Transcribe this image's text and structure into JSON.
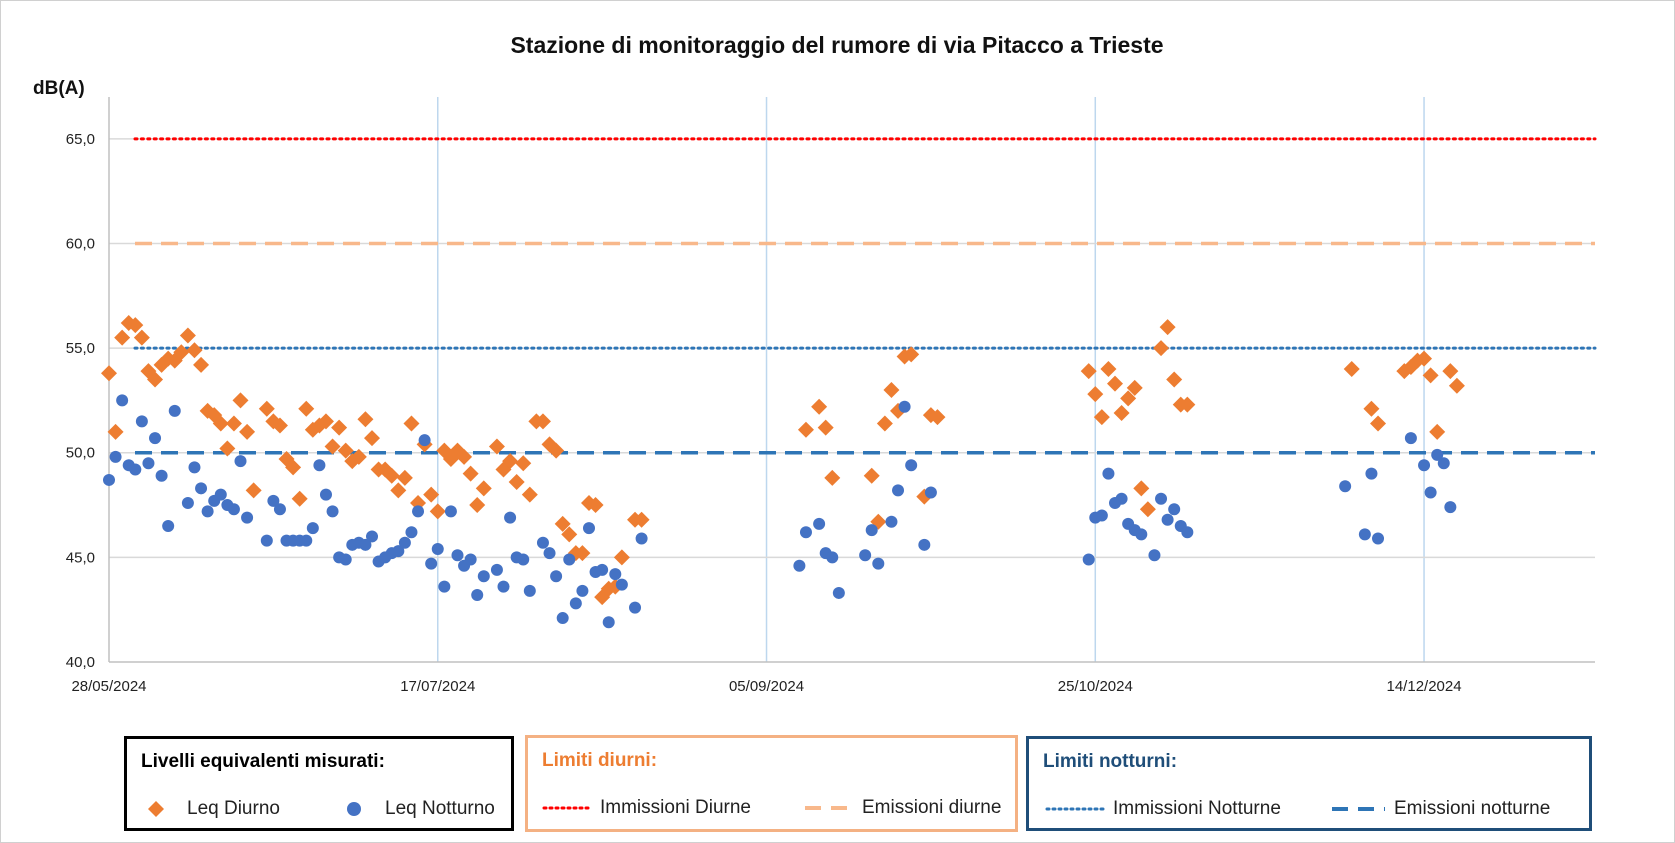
{
  "chart_data": {
    "type": "scatter",
    "title": "Stazione di monitoraggio del rumore di via Pitacco a Trieste",
    "ylabel": "dB(A)",
    "xlabel": "",
    "x_axis_type": "date",
    "xlim": [
      "2024-05-28",
      "2025-01-09"
    ],
    "ylim": [
      40,
      67
    ],
    "y_ticks": [
      40,
      45,
      50,
      55,
      60,
      65
    ],
    "y_tick_labels": [
      "40,0",
      "45,0",
      "50,0",
      "55,0",
      "60,0",
      "65,0"
    ],
    "x_ticks": [
      "2024-05-28",
      "2024-07-17",
      "2024-09-05",
      "2024-10-25",
      "2024-12-14"
    ],
    "x_tick_labels": [
      "28/05/2024",
      "17/07/2024",
      "05/09/2024",
      "25/10/2024",
      "14/12/2024"
    ],
    "grid": "horizontal and vertical",
    "series": [
      {
        "name": "Leq Diurno",
        "marker": "diamond",
        "color": "#ED7D31",
        "points": [
          [
            "2024-05-28",
            53.8
          ],
          [
            "2024-05-29",
            51.0
          ],
          [
            "2024-05-30",
            55.5
          ],
          [
            "2024-05-31",
            56.2
          ],
          [
            "2024-06-01",
            56.1
          ],
          [
            "2024-06-02",
            55.5
          ],
          [
            "2024-06-03",
            53.9
          ],
          [
            "2024-06-04",
            53.5
          ],
          [
            "2024-06-05",
            54.2
          ],
          [
            "2024-06-06",
            54.5
          ],
          [
            "2024-06-07",
            54.4
          ],
          [
            "2024-06-08",
            54.8
          ],
          [
            "2024-06-09",
            55.6
          ],
          [
            "2024-06-10",
            54.9
          ],
          [
            "2024-06-11",
            54.2
          ],
          [
            "2024-06-12",
            52.0
          ],
          [
            "2024-06-13",
            51.8
          ],
          [
            "2024-06-14",
            51.4
          ],
          [
            "2024-06-15",
            50.2
          ],
          [
            "2024-06-16",
            51.4
          ],
          [
            "2024-06-17",
            52.5
          ],
          [
            "2024-06-18",
            51.0
          ],
          [
            "2024-06-19",
            48.2
          ],
          [
            "2024-06-21",
            52.1
          ],
          [
            "2024-06-22",
            51.5
          ],
          [
            "2024-06-23",
            51.3
          ],
          [
            "2024-06-24",
            49.7
          ],
          [
            "2024-06-25",
            49.3
          ],
          [
            "2024-06-26",
            47.8
          ],
          [
            "2024-06-27",
            52.1
          ],
          [
            "2024-06-28",
            51.1
          ],
          [
            "2024-06-29",
            51.3
          ],
          [
            "2024-06-30",
            51.5
          ],
          [
            "2024-07-01",
            50.3
          ],
          [
            "2024-07-02",
            51.2
          ],
          [
            "2024-07-03",
            50.1
          ],
          [
            "2024-07-04",
            49.6
          ],
          [
            "2024-07-05",
            49.8
          ],
          [
            "2024-07-06",
            51.6
          ],
          [
            "2024-07-07",
            50.7
          ],
          [
            "2024-07-08",
            49.2
          ],
          [
            "2024-07-09",
            49.2
          ],
          [
            "2024-07-10",
            48.9
          ],
          [
            "2024-07-11",
            48.2
          ],
          [
            "2024-07-12",
            48.8
          ],
          [
            "2024-07-13",
            51.4
          ],
          [
            "2024-07-14",
            47.6
          ],
          [
            "2024-07-15",
            50.4
          ],
          [
            "2024-07-16",
            48.0
          ],
          [
            "2024-07-17",
            47.2
          ],
          [
            "2024-07-18",
            50.1
          ],
          [
            "2024-07-19",
            49.7
          ],
          [
            "2024-07-20",
            50.1
          ],
          [
            "2024-07-21",
            49.8
          ],
          [
            "2024-07-22",
            49.0
          ],
          [
            "2024-07-23",
            47.5
          ],
          [
            "2024-07-24",
            48.3
          ],
          [
            "2024-07-26",
            50.3
          ],
          [
            "2024-07-27",
            49.2
          ],
          [
            "2024-07-28",
            49.6
          ],
          [
            "2024-07-29",
            48.6
          ],
          [
            "2024-07-30",
            49.5
          ],
          [
            "2024-07-31",
            48.0
          ],
          [
            "2024-08-01",
            51.5
          ],
          [
            "2024-08-02",
            51.5
          ],
          [
            "2024-08-03",
            50.4
          ],
          [
            "2024-08-04",
            50.1
          ],
          [
            "2024-08-05",
            46.6
          ],
          [
            "2024-08-06",
            46.1
          ],
          [
            "2024-08-07",
            45.2
          ],
          [
            "2024-08-08",
            45.2
          ],
          [
            "2024-08-09",
            47.6
          ],
          [
            "2024-08-10",
            47.5
          ],
          [
            "2024-08-11",
            43.1
          ],
          [
            "2024-08-12",
            43.5
          ],
          [
            "2024-08-13",
            43.6
          ],
          [
            "2024-08-14",
            45.0
          ],
          [
            "2024-08-16",
            46.8
          ],
          [
            "2024-08-17",
            46.8
          ],
          [
            "2024-09-11",
            51.1
          ],
          [
            "2024-09-13",
            52.2
          ],
          [
            "2024-09-14",
            51.2
          ],
          [
            "2024-09-15",
            48.8
          ],
          [
            "2024-09-21",
            48.9
          ],
          [
            "2024-09-22",
            46.7
          ],
          [
            "2024-09-23",
            51.4
          ],
          [
            "2024-09-24",
            53.0
          ],
          [
            "2024-09-25",
            52.0
          ],
          [
            "2024-09-26",
            54.6
          ],
          [
            "2024-09-27",
            54.7
          ],
          [
            "2024-09-29",
            47.9
          ],
          [
            "2024-09-30",
            51.8
          ],
          [
            "2024-10-01",
            51.7
          ],
          [
            "2024-10-24",
            53.9
          ],
          [
            "2024-10-25",
            52.8
          ],
          [
            "2024-10-26",
            51.7
          ],
          [
            "2024-10-27",
            54.0
          ],
          [
            "2024-10-28",
            53.3
          ],
          [
            "2024-10-29",
            51.9
          ],
          [
            "2024-10-30",
            52.6
          ],
          [
            "2024-10-31",
            53.1
          ],
          [
            "2024-11-01",
            48.3
          ],
          [
            "2024-11-02",
            47.3
          ],
          [
            "2024-11-04",
            55.0
          ],
          [
            "2024-11-05",
            56.0
          ],
          [
            "2024-11-06",
            53.5
          ],
          [
            "2024-11-07",
            52.3
          ],
          [
            "2024-11-08",
            52.3
          ],
          [
            "2024-12-03",
            54.0
          ],
          [
            "2024-12-06",
            52.1
          ],
          [
            "2024-12-07",
            51.4
          ],
          [
            "2024-12-11",
            53.9
          ],
          [
            "2024-12-12",
            54.1
          ],
          [
            "2024-12-13",
            54.4
          ],
          [
            "2024-12-14",
            54.5
          ],
          [
            "2024-12-15",
            53.7
          ],
          [
            "2024-12-16",
            51.0
          ],
          [
            "2024-12-18",
            53.9
          ],
          [
            "2024-12-19",
            53.2
          ]
        ]
      },
      {
        "name": "Leq Notturno",
        "marker": "circle",
        "color": "#4472C4",
        "points": [
          [
            "2024-05-28",
            48.7
          ],
          [
            "2024-05-29",
            49.8
          ],
          [
            "2024-05-30",
            52.5
          ],
          [
            "2024-05-31",
            49.4
          ],
          [
            "2024-06-01",
            49.2
          ],
          [
            "2024-06-02",
            51.5
          ],
          [
            "2024-06-03",
            49.5
          ],
          [
            "2024-06-04",
            50.7
          ],
          [
            "2024-06-05",
            48.9
          ],
          [
            "2024-06-06",
            46.5
          ],
          [
            "2024-06-07",
            52.0
          ],
          [
            "2024-06-09",
            47.6
          ],
          [
            "2024-06-10",
            49.3
          ],
          [
            "2024-06-11",
            48.3
          ],
          [
            "2024-06-12",
            47.2
          ],
          [
            "2024-06-13",
            47.7
          ],
          [
            "2024-06-14",
            48.0
          ],
          [
            "2024-06-15",
            47.5
          ],
          [
            "2024-06-16",
            47.3
          ],
          [
            "2024-06-17",
            49.6
          ],
          [
            "2024-06-18",
            46.9
          ],
          [
            "2024-06-21",
            45.8
          ],
          [
            "2024-06-22",
            47.7
          ],
          [
            "2024-06-23",
            47.3
          ],
          [
            "2024-06-24",
            45.8
          ],
          [
            "2024-06-25",
            45.8
          ],
          [
            "2024-06-26",
            45.8
          ],
          [
            "2024-06-27",
            45.8
          ],
          [
            "2024-06-28",
            46.4
          ],
          [
            "2024-06-29",
            49.4
          ],
          [
            "2024-06-30",
            48.0
          ],
          [
            "2024-07-01",
            47.2
          ],
          [
            "2024-07-02",
            45.0
          ],
          [
            "2024-07-03",
            44.9
          ],
          [
            "2024-07-04",
            45.6
          ],
          [
            "2024-07-05",
            45.7
          ],
          [
            "2024-07-06",
            45.6
          ],
          [
            "2024-07-07",
            46.0
          ],
          [
            "2024-07-08",
            44.8
          ],
          [
            "2024-07-09",
            45.0
          ],
          [
            "2024-07-10",
            45.2
          ],
          [
            "2024-07-11",
            45.3
          ],
          [
            "2024-07-12",
            45.7
          ],
          [
            "2024-07-13",
            46.2
          ],
          [
            "2024-07-14",
            47.2
          ],
          [
            "2024-07-15",
            50.6
          ],
          [
            "2024-07-16",
            44.7
          ],
          [
            "2024-07-17",
            45.4
          ],
          [
            "2024-07-18",
            43.6
          ],
          [
            "2024-07-19",
            47.2
          ],
          [
            "2024-07-20",
            45.1
          ],
          [
            "2024-07-21",
            44.6
          ],
          [
            "2024-07-22",
            44.9
          ],
          [
            "2024-07-23",
            43.2
          ],
          [
            "2024-07-24",
            44.1
          ],
          [
            "2024-07-26",
            44.4
          ],
          [
            "2024-07-27",
            43.6
          ],
          [
            "2024-07-28",
            46.9
          ],
          [
            "2024-07-29",
            45.0
          ],
          [
            "2024-07-30",
            44.9
          ],
          [
            "2024-07-31",
            43.4
          ],
          [
            "2024-08-02",
            45.7
          ],
          [
            "2024-08-03",
            45.2
          ],
          [
            "2024-08-04",
            44.1
          ],
          [
            "2024-08-05",
            42.1
          ],
          [
            "2024-08-06",
            44.9
          ],
          [
            "2024-08-07",
            42.8
          ],
          [
            "2024-08-08",
            43.4
          ],
          [
            "2024-08-09",
            46.4
          ],
          [
            "2024-08-10",
            44.3
          ],
          [
            "2024-08-11",
            44.4
          ],
          [
            "2024-08-12",
            41.9
          ],
          [
            "2024-08-13",
            44.2
          ],
          [
            "2024-08-14",
            43.7
          ],
          [
            "2024-08-16",
            42.6
          ],
          [
            "2024-08-17",
            45.9
          ],
          [
            "2024-09-10",
            44.6
          ],
          [
            "2024-09-11",
            46.2
          ],
          [
            "2024-09-13",
            46.6
          ],
          [
            "2024-09-14",
            45.2
          ],
          [
            "2024-09-15",
            45.0
          ],
          [
            "2024-09-16",
            43.3
          ],
          [
            "2024-09-20",
            45.1
          ],
          [
            "2024-09-21",
            46.3
          ],
          [
            "2024-09-22",
            44.7
          ],
          [
            "2024-09-24",
            46.7
          ],
          [
            "2024-09-25",
            48.2
          ],
          [
            "2024-09-26",
            52.2
          ],
          [
            "2024-09-27",
            49.4
          ],
          [
            "2024-09-29",
            45.6
          ],
          [
            "2024-09-30",
            48.1
          ],
          [
            "2024-10-24",
            44.9
          ],
          [
            "2024-10-25",
            46.9
          ],
          [
            "2024-10-26",
            47.0
          ],
          [
            "2024-10-27",
            49.0
          ],
          [
            "2024-10-28",
            47.6
          ],
          [
            "2024-10-29",
            47.8
          ],
          [
            "2024-10-30",
            46.6
          ],
          [
            "2024-10-31",
            46.3
          ],
          [
            "2024-11-01",
            46.1
          ],
          [
            "2024-11-03",
            45.1
          ],
          [
            "2024-11-04",
            47.8
          ],
          [
            "2024-11-05",
            46.8
          ],
          [
            "2024-11-06",
            47.3
          ],
          [
            "2024-11-07",
            46.5
          ],
          [
            "2024-11-08",
            46.2
          ],
          [
            "2024-12-02",
            48.4
          ],
          [
            "2024-12-05",
            46.1
          ],
          [
            "2024-12-06",
            49.0
          ],
          [
            "2024-12-07",
            45.9
          ],
          [
            "2024-12-12",
            50.7
          ],
          [
            "2024-12-14",
            49.4
          ],
          [
            "2024-12-15",
            48.1
          ],
          [
            "2024-12-16",
            49.9
          ],
          [
            "2024-12-17",
            49.5
          ],
          [
            "2024-12-18",
            47.4
          ]
        ]
      }
    ],
    "reference_lines": [
      {
        "name": "Immissioni Diurne",
        "y": 65,
        "style": "dotted",
        "color": "#FF0000",
        "group": "diurni"
      },
      {
        "name": "Emissioni diurne",
        "y": 60,
        "style": "dashed",
        "color": "#F8B88B",
        "group": "diurni"
      },
      {
        "name": "Immissioni Notturne",
        "y": 55,
        "style": "dotted",
        "color": "#2E75B6",
        "group": "notturni"
      },
      {
        "name": "Emissioni notturne",
        "y": 50,
        "style": "dashed",
        "color": "#2E75B6",
        "group": "notturni"
      }
    ]
  },
  "legend": {
    "measured": {
      "title": "Livelli equivalenti misurati:",
      "items": [
        "Leq Diurno",
        "Leq Notturno"
      ]
    },
    "day_limits": {
      "title": "Limiti diurni:",
      "items": [
        "Immissioni Diurne",
        "Emissioni diurne"
      ]
    },
    "night_limits": {
      "title": "Limiti notturni:",
      "items": [
        "Immissioni Notturne",
        "Emissioni notturne"
      ]
    }
  }
}
